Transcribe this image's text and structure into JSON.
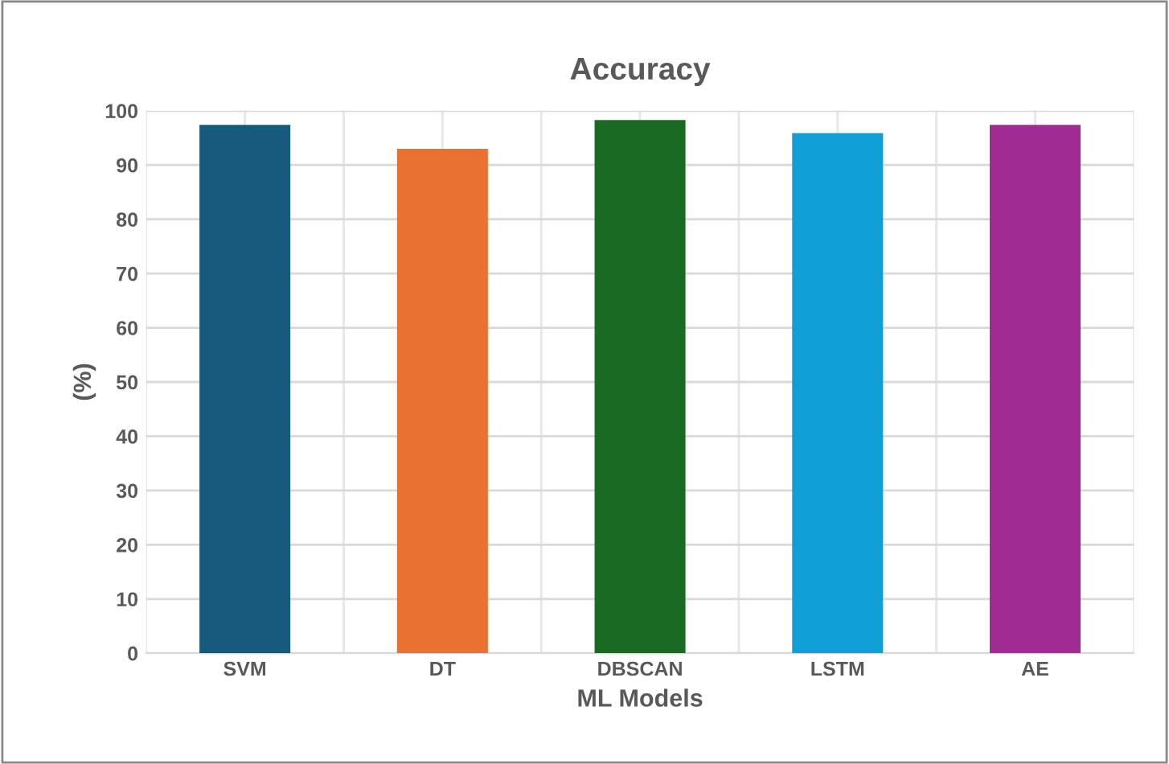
{
  "chart_data": {
    "type": "bar",
    "title": "Accuracy",
    "xlabel": "ML Models",
    "ylabel": "(%)",
    "categories": [
      "SVM",
      "DT",
      "DBSCAN",
      "LSTM",
      "AE"
    ],
    "values": [
      97.4,
      93.0,
      98.3,
      95.9,
      97.4
    ],
    "colors": [
      "#175a7d",
      "#e97132",
      "#1b6a24",
      "#0f9fd6",
      "#a02b93"
    ],
    "ylim": [
      0,
      100
    ],
    "yticks": [
      0,
      10,
      20,
      30,
      40,
      50,
      60,
      70,
      80,
      90,
      100
    ],
    "grid": true
  }
}
